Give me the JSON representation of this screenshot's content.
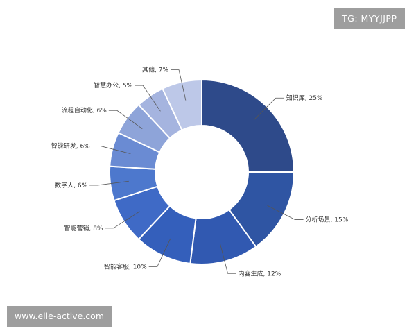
{
  "watermarks": {
    "top_right": "TG: MYYJJPP",
    "bottom_left": "www.elle-active.com"
  },
  "chart_data": {
    "type": "pie",
    "variant": "donut",
    "title": "",
    "legend": "none",
    "colors": [
      "#2e4a8a",
      "#2f55a3",
      "#3159b1",
      "#345fbb",
      "#3f6ac6",
      "#4d78cd",
      "#6a8bd3",
      "#8ea4d9",
      "#a5b4df",
      "#bdc8e8",
      "#ccd5ef"
    ],
    "slices": [
      {
        "label": "知识库",
        "value": 25,
        "text": "知识库, 25%"
      },
      {
        "label": "分析场景",
        "value": 15,
        "text": "分析场景, 15%"
      },
      {
        "label": "内容生成",
        "value": 12,
        "text": "内容生成, 12%"
      },
      {
        "label": "智能客服",
        "value": 10,
        "text": "智能客服, 10%"
      },
      {
        "label": "智能营销",
        "value": 8,
        "text": "智能营销, 8%"
      },
      {
        "label": "数字人",
        "value": 6,
        "text": "数字人, 6%"
      },
      {
        "label": "智能研发",
        "value": 6,
        "text": "智能研发, 6%"
      },
      {
        "label": "流程自动化",
        "value": 6,
        "text": "流程自动化, 6%"
      },
      {
        "label": "智慧办公",
        "value": 5,
        "text": "智慧办公, 5%"
      },
      {
        "label": "其他",
        "value": 7,
        "text": "其他, 7%"
      }
    ]
  }
}
